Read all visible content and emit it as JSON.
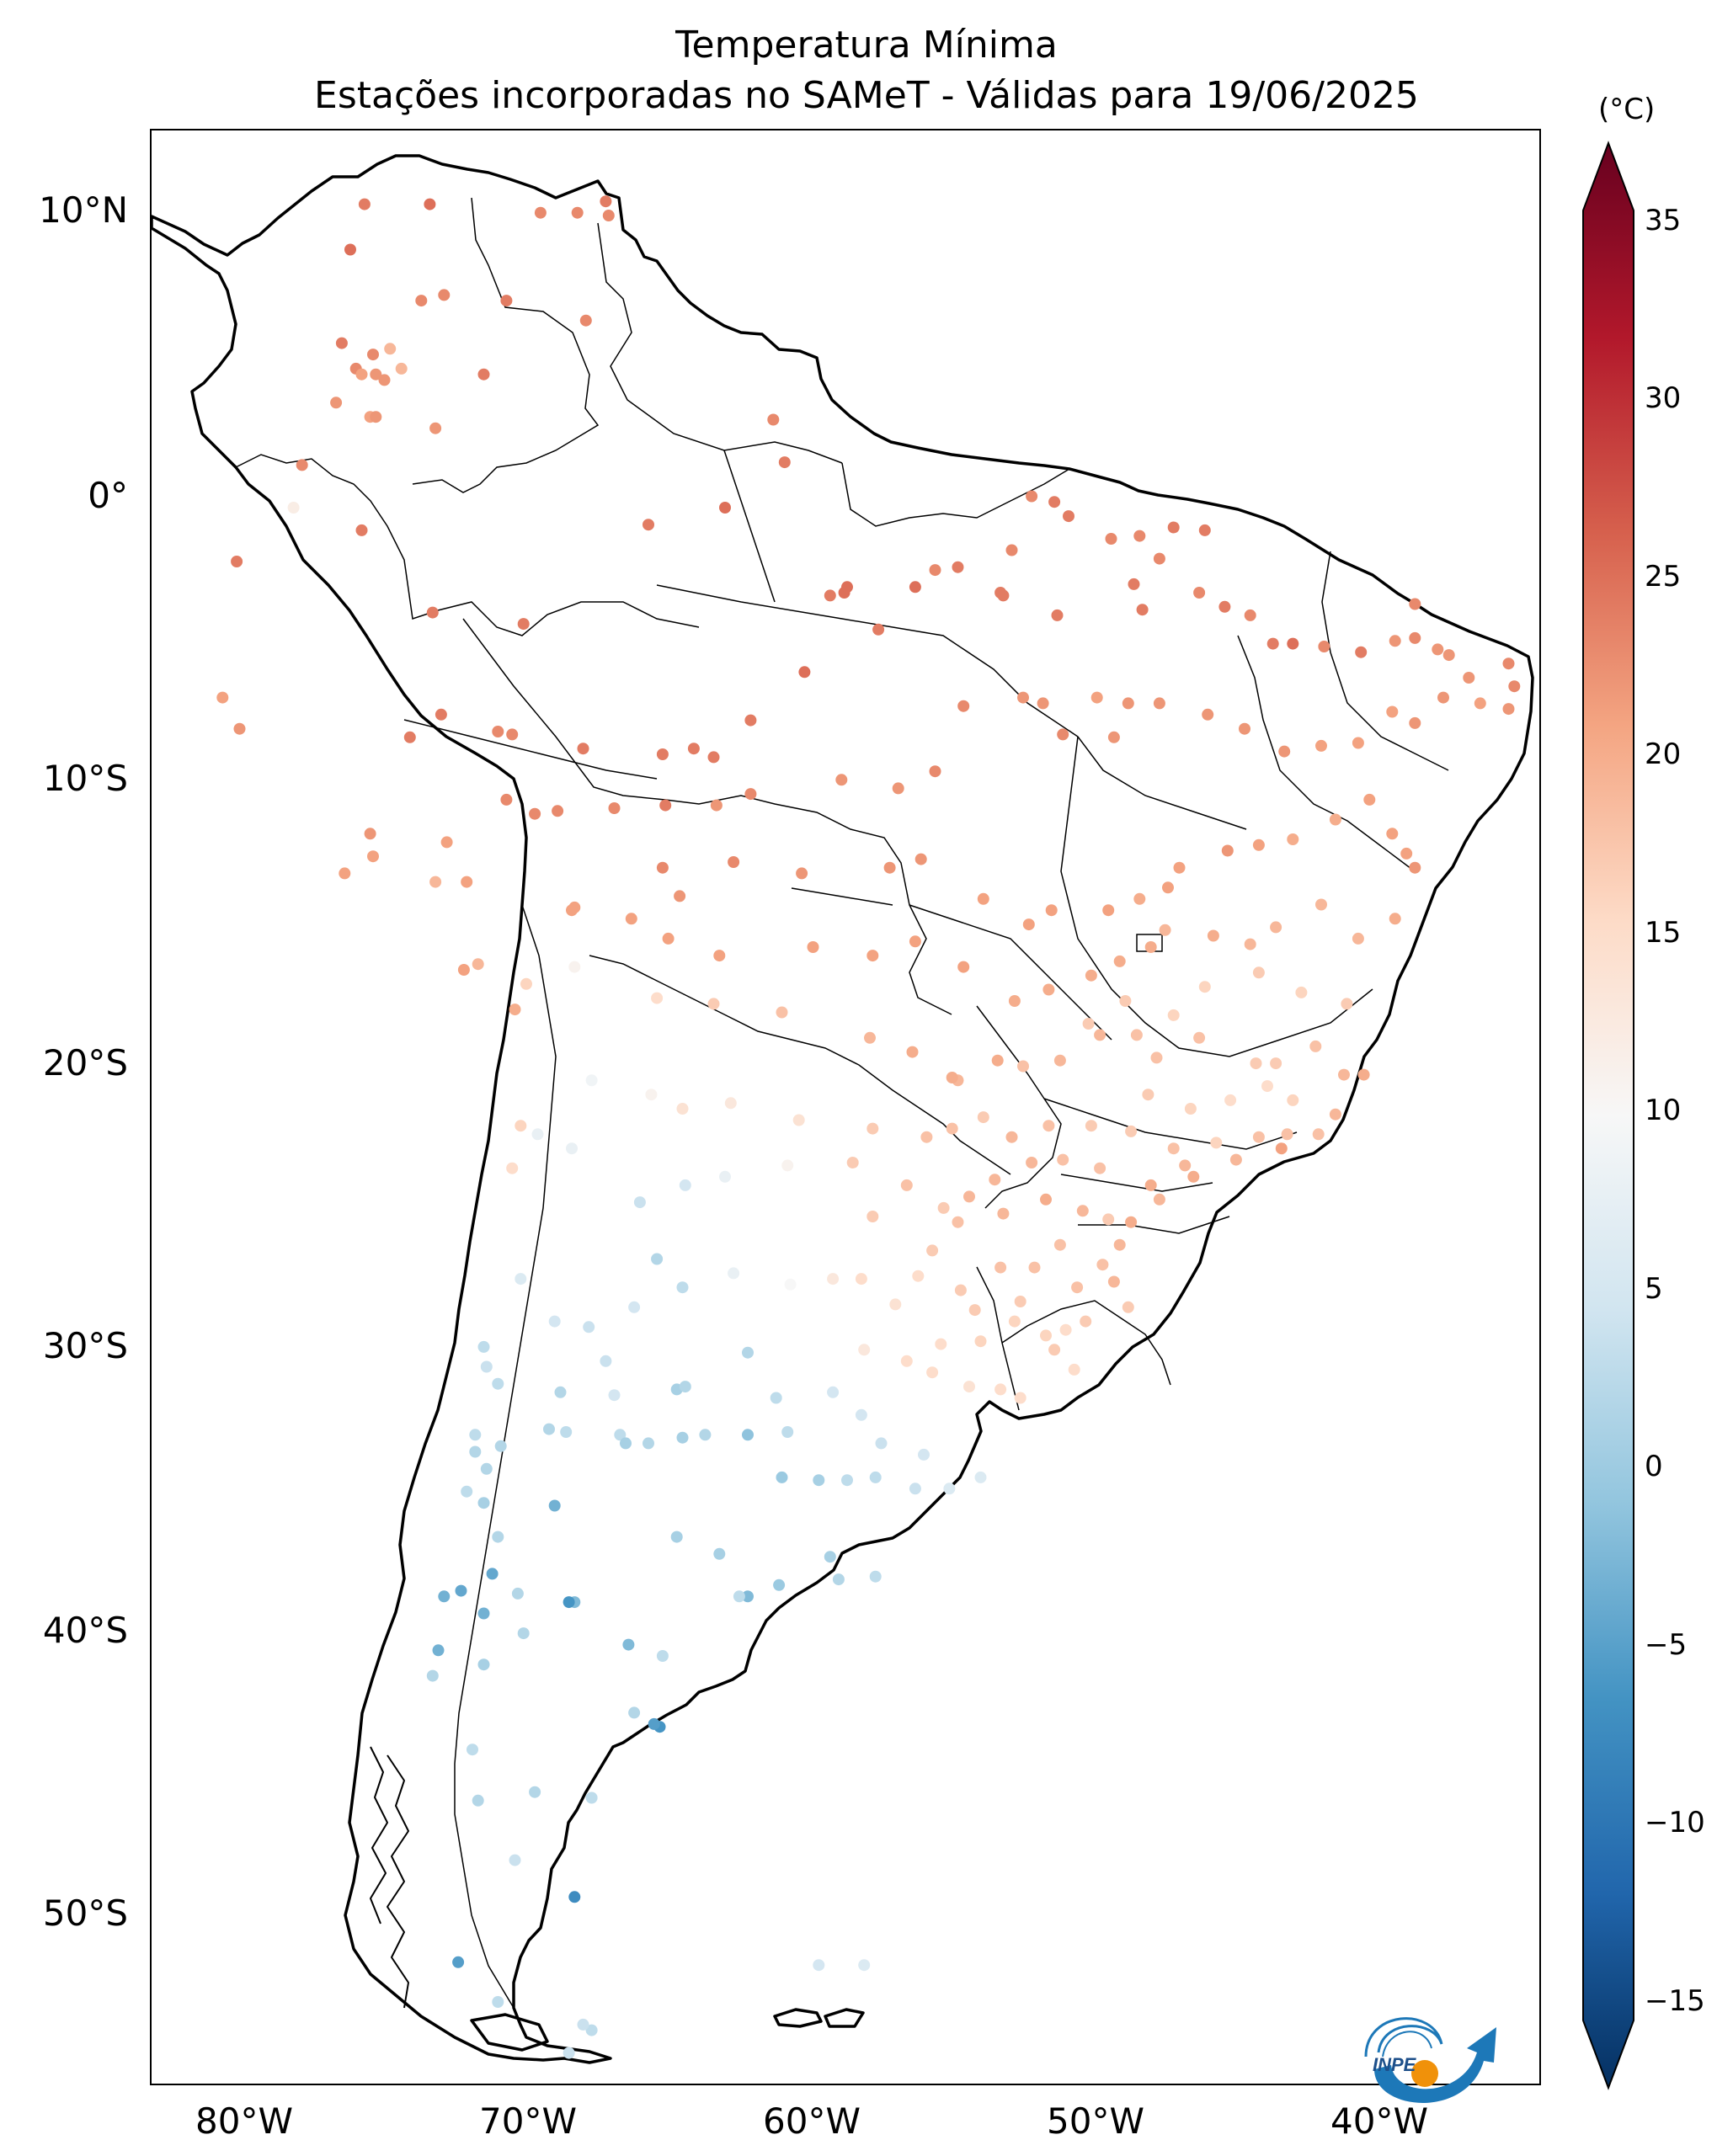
{
  "title": {
    "line1": "Temperatura Mínima",
    "line2": "Estações incorporadas no SAMeT - Válidas para 19/06/2025"
  },
  "map": {
    "lat_labels": [
      "10°N",
      "0°",
      "10°S",
      "20°S",
      "30°S",
      "40°S",
      "50°S"
    ],
    "lon_labels": [
      "80°W",
      "70°W",
      "60°W",
      "50°W",
      "40°W"
    ],
    "extent": {
      "lon_min": -83,
      "lon_max": -34,
      "lat_min": -56,
      "lat_max": 13
    }
  },
  "colorbar": {
    "unit": "(°C)",
    "ticks": [
      "35",
      "30",
      "25",
      "20",
      "15",
      "10",
      "5",
      "0",
      "−5",
      "−10",
      "−15"
    ],
    "range": [
      -17,
      37
    ],
    "colors": [
      "#053061",
      "#2166ac",
      "#4393c3",
      "#92c5de",
      "#d1e5f0",
      "#f7f7f7",
      "#fddbc7",
      "#f4a582",
      "#d6604d",
      "#b2182b",
      "#67001f"
    ]
  },
  "logo": {
    "text": "INPE"
  },
  "stations": [
    [
      -75.5,
      10.4,
      24
    ],
    [
      -73.2,
      10.4,
      25
    ],
    [
      -67.0,
      10.5,
      24
    ],
    [
      -69.3,
      10.1,
      23
    ],
    [
      -68.0,
      10.1,
      23
    ],
    [
      -66.9,
      10.0,
      23
    ],
    [
      -76.0,
      8.8,
      25
    ],
    [
      -73.5,
      7.0,
      23
    ],
    [
      -72.7,
      7.2,
      23
    ],
    [
      -70.5,
      7.0,
      24
    ],
    [
      -67.7,
      6.3,
      23
    ],
    [
      -76.3,
      5.5,
      24
    ],
    [
      -74.6,
      5.3,
      19
    ],
    [
      -75.2,
      5.1,
      23
    ],
    [
      -75.8,
      4.6,
      23
    ],
    [
      -75.6,
      4.4,
      21
    ],
    [
      -74.2,
      4.6,
      19
    ],
    [
      -75.1,
      4.4,
      22
    ],
    [
      -74.8,
      4.2,
      22
    ],
    [
      -71.3,
      4.4,
      24
    ],
    [
      -76.5,
      3.4,
      22
    ],
    [
      -75.3,
      2.9,
      21
    ],
    [
      -75.1,
      2.9,
      22
    ],
    [
      -73.0,
      2.5,
      22
    ],
    [
      -77.7,
      1.2,
      23
    ],
    [
      -75.6,
      -1.1,
      24
    ],
    [
      -80.0,
      -2.2,
      24
    ],
    [
      -78.0,
      -0.3,
      12
    ],
    [
      -73.1,
      -4.0,
      24
    ],
    [
      -69.9,
      -4.4,
      24
    ],
    [
      -80.5,
      -7.0,
      21
    ],
    [
      -79.9,
      -8.1,
      22
    ],
    [
      -73.9,
      -8.4,
      24
    ],
    [
      -72.8,
      -7.6,
      24
    ],
    [
      -70.8,
      -8.2,
      23
    ],
    [
      -70.3,
      -8.3,
      23
    ],
    [
      -67.8,
      -8.8,
      24
    ],
    [
      -65.0,
      -9.0,
      24
    ],
    [
      -63.2,
      -9.1,
      24
    ],
    [
      -63.9,
      -8.8,
      24
    ],
    [
      -61.9,
      -7.8,
      24
    ],
    [
      -60.0,
      -6.1,
      25
    ],
    [
      -58.6,
      -3.3,
      25
    ],
    [
      -58.5,
      -3.1,
      25
    ],
    [
      -59.1,
      -3.4,
      24
    ],
    [
      -56.1,
      -3.1,
      25
    ],
    [
      -62.8,
      -0.3,
      25
    ],
    [
      -61.1,
      2.8,
      23
    ],
    [
      -60.7,
      1.3,
      24
    ],
    [
      -65.5,
      -0.9,
      24
    ],
    [
      -57.4,
      -4.6,
      24
    ],
    [
      -54.6,
      -2.4,
      24
    ],
    [
      -55.4,
      -2.5,
      23
    ],
    [
      -52.7,
      -1.8,
      23
    ],
    [
      -53.0,
      -3.4,
      24
    ],
    [
      -53.1,
      -3.3,
      24
    ],
    [
      -51.1,
      -4.1,
      24
    ],
    [
      -52.0,
      0.1,
      23
    ],
    [
      -51.2,
      -0.1,
      24
    ],
    [
      -50.7,
      -0.6,
      24
    ],
    [
      -49.2,
      -1.4,
      23
    ],
    [
      -48.2,
      -1.3,
      23
    ],
    [
      -47.0,
      -1.0,
      24
    ],
    [
      -45.9,
      -1.1,
      24
    ],
    [
      -48.4,
      -3.0,
      24
    ],
    [
      -48.1,
      -3.9,
      24
    ],
    [
      -47.5,
      -2.1,
      23
    ],
    [
      -46.1,
      -3.3,
      23
    ],
    [
      -45.2,
      -3.8,
      24
    ],
    [
      -44.3,
      -4.1,
      23
    ],
    [
      -43.5,
      -5.1,
      24
    ],
    [
      -42.8,
      -5.1,
      25
    ],
    [
      -41.7,
      -5.2,
      23
    ],
    [
      -40.4,
      -5.4,
      24
    ],
    [
      -39.2,
      -5.0,
      22
    ],
    [
      -38.5,
      -4.9,
      23
    ],
    [
      -38.5,
      -3.7,
      23
    ],
    [
      -37.7,
      -5.3,
      22
    ],
    [
      -37.3,
      -5.5,
      22
    ],
    [
      -36.6,
      -6.3,
      22
    ],
    [
      -35.2,
      -5.8,
      23
    ],
    [
      -35.0,
      -6.6,
      23
    ],
    [
      -35.2,
      -7.4,
      22
    ],
    [
      -36.2,
      -7.2,
      21
    ],
    [
      -37.5,
      -7.0,
      22
    ],
    [
      -38.5,
      -7.9,
      22
    ],
    [
      -39.3,
      -7.5,
      21
    ],
    [
      -40.5,
      -8.6,
      21
    ],
    [
      -41.8,
      -8.7,
      21
    ],
    [
      -43.1,
      -8.9,
      22
    ],
    [
      -44.5,
      -8.1,
      22
    ],
    [
      -45.8,
      -7.6,
      22
    ],
    [
      -47.5,
      -7.2,
      22
    ],
    [
      -48.6,
      -7.2,
      22
    ],
    [
      -49.1,
      -8.4,
      22
    ],
    [
      -49.7,
      -7.0,
      21
    ],
    [
      -50.9,
      -8.3,
      23
    ],
    [
      -51.6,
      -7.2,
      22
    ],
    [
      -52.3,
      -7.0,
      22
    ],
    [
      -54.4,
      -7.3,
      23
    ],
    [
      -55.4,
      -9.6,
      23
    ],
    [
      -56.7,
      -10.2,
      22
    ],
    [
      -58.7,
      -9.9,
      22
    ],
    [
      -61.9,
      -10.4,
      23
    ],
    [
      -63.1,
      -10.8,
      22
    ],
    [
      -64.9,
      -10.8,
      24
    ],
    [
      -66.7,
      -10.9,
      23
    ],
    [
      -68.7,
      -11.0,
      23
    ],
    [
      -69.5,
      -11.1,
      23
    ],
    [
      -70.5,
      -10.6,
      23
    ],
    [
      -72.6,
      -12.1,
      21
    ],
    [
      -75.3,
      -11.8,
      22
    ],
    [
      -75.2,
      -12.6,
      21
    ],
    [
      -76.2,
      -13.2,
      21
    ],
    [
      -73.0,
      -13.5,
      19
    ],
    [
      -71.9,
      -13.5,
      21
    ],
    [
      -68.1,
      -14.4,
      21
    ],
    [
      -68.2,
      -14.5,
      21
    ],
    [
      -65.0,
      -13.0,
      23
    ],
    [
      -64.4,
      -14.0,
      22
    ],
    [
      -62.5,
      -12.8,
      23
    ],
    [
      -60.1,
      -13.2,
      22
    ],
    [
      -57.0,
      -13.0,
      22
    ],
    [
      -55.9,
      -12.7,
      22
    ],
    [
      -53.7,
      -14.1,
      21
    ],
    [
      -51.3,
      -14.5,
      21
    ],
    [
      -52.1,
      -15.0,
      21
    ],
    [
      -49.3,
      -14.5,
      21
    ],
    [
      -48.2,
      -14.1,
      20
    ],
    [
      -47.2,
      -13.7,
      21
    ],
    [
      -46.8,
      -13.0,
      21
    ],
    [
      -45.1,
      -12.4,
      22
    ],
    [
      -44.0,
      -12.2,
      21
    ],
    [
      -42.8,
      -12.0,
      20
    ],
    [
      -41.3,
      -11.3,
      20
    ],
    [
      -40.1,
      -10.6,
      21
    ],
    [
      -39.3,
      -11.8,
      21
    ],
    [
      -38.8,
      -12.5,
      21
    ],
    [
      -38.5,
      -13.0,
      22
    ],
    [
      -39.2,
      -14.8,
      20
    ],
    [
      -40.5,
      -15.5,
      19
    ],
    [
      -41.8,
      -14.3,
      19
    ],
    [
      -43.4,
      -15.1,
      19
    ],
    [
      -44.3,
      -15.7,
      19
    ],
    [
      -45.6,
      -15.4,
      20
    ],
    [
      -47.3,
      -15.2,
      19
    ],
    [
      -47.8,
      -15.8,
      20
    ],
    [
      -48.9,
      -16.3,
      20
    ],
    [
      -49.9,
      -16.8,
      20
    ],
    [
      -51.4,
      -17.3,
      20
    ],
    [
      -52.6,
      -17.7,
      20
    ],
    [
      -54.4,
      -16.5,
      21
    ],
    [
      -56.1,
      -15.6,
      21
    ],
    [
      -57.6,
      -16.1,
      21
    ],
    [
      -59.7,
      -15.8,
      21
    ],
    [
      -63.0,
      -16.1,
      21
    ],
    [
      -64.8,
      -15.5,
      21
    ],
    [
      -66.1,
      -14.8,
      21
    ],
    [
      -68.1,
      -16.5,
      11
    ],
    [
      -71.5,
      -16.4,
      19
    ],
    [
      -70.2,
      -18.0,
      20
    ],
    [
      -69.8,
      -17.1,
      16
    ],
    [
      -72.0,
      -16.6,
      21
    ],
    [
      -65.2,
      -17.6,
      15
    ],
    [
      -63.2,
      -17.8,
      17
    ],
    [
      -60.8,
      -18.1,
      18
    ],
    [
      -57.7,
      -19.0,
      19
    ],
    [
      -56.2,
      -19.5,
      20
    ],
    [
      -54.6,
      -20.5,
      19
    ],
    [
      -54.8,
      -20.4,
      20
    ],
    [
      -53.2,
      -19.8,
      20
    ],
    [
      -51.0,
      -19.8,
      19
    ],
    [
      -49.6,
      -18.9,
      19
    ],
    [
      -48.3,
      -18.9,
      18
    ],
    [
      -47.6,
      -19.7,
      18
    ],
    [
      -46.1,
      -19.0,
      18
    ],
    [
      -44.1,
      -19.9,
      17
    ],
    [
      -43.4,
      -19.9,
      17
    ],
    [
      -42.0,
      -19.3,
      18
    ],
    [
      -41.0,
      -20.3,
      19
    ],
    [
      -40.3,
      -20.3,
      20
    ],
    [
      -41.3,
      -21.7,
      19
    ],
    [
      -43.0,
      -22.4,
      18
    ],
    [
      -43.2,
      -22.9,
      21
    ],
    [
      -44.0,
      -22.5,
      18
    ],
    [
      -45.5,
      -22.7,
      16
    ],
    [
      -46.6,
      -23.5,
      19
    ],
    [
      -47.0,
      -22.9,
      18
    ],
    [
      -48.5,
      -22.3,
      17
    ],
    [
      -49.9,
      -22.1,
      17
    ],
    [
      -51.4,
      -22.1,
      18
    ],
    [
      -52.7,
      -22.5,
      19
    ],
    [
      -54.8,
      -22.2,
      18
    ],
    [
      -55.7,
      -22.5,
      18
    ],
    [
      -57.6,
      -22.2,
      17
    ],
    [
      -60.2,
      -21.9,
      14
    ],
    [
      -62.6,
      -21.3,
      13
    ],
    [
      -64.3,
      -21.5,
      14
    ],
    [
      -65.4,
      -21.0,
      11
    ],
    [
      -67.5,
      -20.5,
      9
    ],
    [
      -69.4,
      -22.4,
      8
    ],
    [
      -70.3,
      -23.6,
      15
    ],
    [
      -70.0,
      -22.1,
      16
    ],
    [
      -68.2,
      -22.9,
      8
    ],
    [
      -65.8,
      -24.8,
      4
    ],
    [
      -64.2,
      -24.2,
      5
    ],
    [
      -62.8,
      -23.9,
      8
    ],
    [
      -60.6,
      -23.5,
      11
    ],
    [
      -58.3,
      -23.4,
      17
    ],
    [
      -57.6,
      -25.3,
      17
    ],
    [
      -56.4,
      -24.2,
      18
    ],
    [
      -55.1,
      -25.0,
      17
    ],
    [
      -54.6,
      -25.5,
      18
    ],
    [
      -53.0,
      -25.2,
      19
    ],
    [
      -51.5,
      -24.7,
      20
    ],
    [
      -50.2,
      -25.1,
      19
    ],
    [
      -49.3,
      -25.4,
      17
    ],
    [
      -48.5,
      -25.5,
      20
    ],
    [
      -47.5,
      -24.7,
      19
    ],
    [
      -48.9,
      -26.3,
      19
    ],
    [
      -49.1,
      -27.6,
      19
    ],
    [
      -50.4,
      -27.8,
      18
    ],
    [
      -51.9,
      -27.1,
      18
    ],
    [
      -53.1,
      -27.1,
      18
    ],
    [
      -54.5,
      -27.9,
      17
    ],
    [
      -56.0,
      -27.4,
      15
    ],
    [
      -58.0,
      -27.5,
      15
    ],
    [
      -59.0,
      -27.5,
      13
    ],
    [
      -60.5,
      -27.7,
      10
    ],
    [
      -62.5,
      -27.3,
      8
    ],
    [
      -64.3,
      -27.8,
      3
    ],
    [
      -65.2,
      -26.8,
      2
    ],
    [
      -66.0,
      -28.5,
      5
    ],
    [
      -67.6,
      -29.2,
      4
    ],
    [
      -68.8,
      -29.0,
      5
    ],
    [
      -70.0,
      -27.5,
      6
    ],
    [
      -71.3,
      -29.9,
      3
    ],
    [
      -71.2,
      -30.6,
      4
    ],
    [
      -70.8,
      -31.2,
      3
    ],
    [
      -68.6,
      -31.5,
      2
    ],
    [
      -67.0,
      -30.4,
      4
    ],
    [
      -66.7,
      -31.6,
      5
    ],
    [
      -64.5,
      -31.4,
      1
    ],
    [
      -64.2,
      -31.3,
      2
    ],
    [
      -62.0,
      -30.1,
      2
    ],
    [
      -61.0,
      -31.7,
      3
    ],
    [
      -60.6,
      -32.9,
      3
    ],
    [
      -59.0,
      -31.5,
      5
    ],
    [
      -57.9,
      -30.0,
      13
    ],
    [
      -56.4,
      -30.4,
      15
    ],
    [
      -55.5,
      -30.8,
      15
    ],
    [
      -54.2,
      -31.3,
      14
    ],
    [
      -53.1,
      -31.4,
      15
    ],
    [
      -52.4,
      -31.7,
      15
    ],
    [
      -51.2,
      -30.0,
      17
    ],
    [
      -50.5,
      -30.7,
      15
    ],
    [
      -50.1,
      -29.0,
      17
    ],
    [
      -51.5,
      -29.5,
      16
    ],
    [
      -53.8,
      -29.7,
      16
    ],
    [
      -55.2,
      -29.8,
      15
    ],
    [
      -54.0,
      -28.6,
      17
    ],
    [
      -52.4,
      -28.3,
      17
    ],
    [
      -58.0,
      -32.3,
      5
    ],
    [
      -57.3,
      -33.3,
      4
    ],
    [
      -56.1,
      -34.9,
      4
    ],
    [
      -54.9,
      -34.9,
      6
    ],
    [
      -53.8,
      -34.5,
      6
    ],
    [
      -55.8,
      -33.7,
      5
    ],
    [
      -57.5,
      -34.5,
      3
    ],
    [
      -58.5,
      -34.6,
      3
    ],
    [
      -59.5,
      -34.6,
      1
    ],
    [
      -60.8,
      -34.5,
      0
    ],
    [
      -62.0,
      -33.0,
      -1
    ],
    [
      -63.5,
      -33.0,
      2
    ],
    [
      -64.3,
      -33.1,
      1
    ],
    [
      -65.5,
      -33.3,
      2
    ],
    [
      -66.5,
      -33.0,
      3
    ],
    [
      -68.4,
      -32.9,
      3
    ],
    [
      -69.0,
      -32.8,
      2
    ],
    [
      -70.7,
      -33.4,
      2
    ],
    [
      -71.6,
      -33.0,
      3
    ],
    [
      -71.6,
      -33.6,
      2
    ],
    [
      -71.2,
      -34.2,
      2
    ],
    [
      -71.9,
      -35.0,
      3
    ],
    [
      -71.3,
      -35.4,
      1
    ],
    [
      -70.8,
      -36.6,
      2
    ],
    [
      -68.1,
      -38.9,
      -2
    ],
    [
      -68.8,
      -35.5,
      -3
    ],
    [
      -66.3,
      -33.3,
      1
    ],
    [
      -64.5,
      -36.6,
      1
    ],
    [
      -63.0,
      -37.2,
      1
    ],
    [
      -62.0,
      -38.7,
      -2
    ],
    [
      -60.9,
      -38.3,
      0
    ],
    [
      -59.1,
      -37.3,
      1
    ],
    [
      -57.5,
      -38.0,
      3
    ],
    [
      -58.8,
      -38.1,
      2
    ],
    [
      -62.3,
      -38.7,
      3
    ],
    [
      -65.0,
      -40.8,
      3
    ],
    [
      -66.2,
      -40.4,
      -2
    ],
    [
      -68.3,
      -38.9,
      -6
    ],
    [
      -70.1,
      -38.6,
      2
    ],
    [
      -71.0,
      -37.9,
      -4
    ],
    [
      -71.3,
      -39.3,
      -3
    ],
    [
      -72.7,
      -38.7,
      -3
    ],
    [
      -72.9,
      -40.6,
      -3
    ],
    [
      -73.1,
      -41.5,
      2
    ],
    [
      -71.3,
      -41.1,
      1
    ],
    [
      -69.9,
      -40.0,
      2
    ],
    [
      -72.1,
      -38.5,
      -4
    ],
    [
      -71.5,
      -45.9,
      2
    ],
    [
      -71.7,
      -44.1,
      3
    ],
    [
      -69.5,
      -45.6,
      2
    ],
    [
      -67.5,
      -45.8,
      3
    ],
    [
      -65.1,
      -43.3,
      -6
    ],
    [
      -65.3,
      -43.2,
      -5
    ],
    [
      -66.0,
      -42.8,
      2
    ],
    [
      -70.2,
      -48.0,
      4
    ],
    [
      -68.1,
      -49.3,
      -7
    ],
    [
      -72.2,
      -51.6,
      -5
    ],
    [
      -70.8,
      -53.0,
      3
    ],
    [
      -68.3,
      -54.8,
      4
    ],
    [
      -67.5,
      -54.0,
      3
    ],
    [
      -67.8,
      -53.8,
      4
    ],
    [
      -59.5,
      -51.7,
      5
    ],
    [
      -57.9,
      -51.7,
      6
    ],
    [
      -44.0,
      -16.7,
      17
    ],
    [
      -42.5,
      -17.4,
      16
    ],
    [
      -40.9,
      -17.8,
      17
    ],
    [
      -45.9,
      -17.2,
      16
    ],
    [
      -47.0,
      -18.2,
      16
    ],
    [
      -48.7,
      -17.7,
      17
    ],
    [
      -50.0,
      -18.5,
      17
    ],
    [
      -52.3,
      -20.0,
      18
    ],
    [
      -53.7,
      -21.8,
      17
    ],
    [
      -47.9,
      -21.0,
      17
    ],
    [
      -46.4,
      -21.5,
      16
    ],
    [
      -45.0,
      -21.2,
      15
    ],
    [
      -43.7,
      -20.7,
      15
    ],
    [
      -42.8,
      -21.2,
      16
    ],
    [
      -41.9,
      -22.4,
      18
    ],
    [
      -44.8,
      -23.3,
      19
    ],
    [
      -46.3,
      -23.9,
      20
    ],
    [
      -47.8,
      -24.2,
      20
    ],
    [
      -49.6,
      -23.6,
      18
    ],
    [
      -50.9,
      -23.3,
      18
    ],
    [
      -52.0,
      -23.4,
      19
    ],
    [
      -53.3,
      -24.0,
      19
    ],
    [
      -54.2,
      -24.6,
      19
    ],
    [
      -51.0,
      -26.3,
      18
    ],
    [
      -49.5,
      -27.0,
      18
    ],
    [
      -48.6,
      -28.5,
      17
    ],
    [
      -50.8,
      -29.3,
      15
    ],
    [
      -52.6,
      -29.0,
      16
    ],
    [
      -55.5,
      -26.5,
      17
    ],
    [
      -56.8,
      -28.4,
      14
    ]
  ]
}
